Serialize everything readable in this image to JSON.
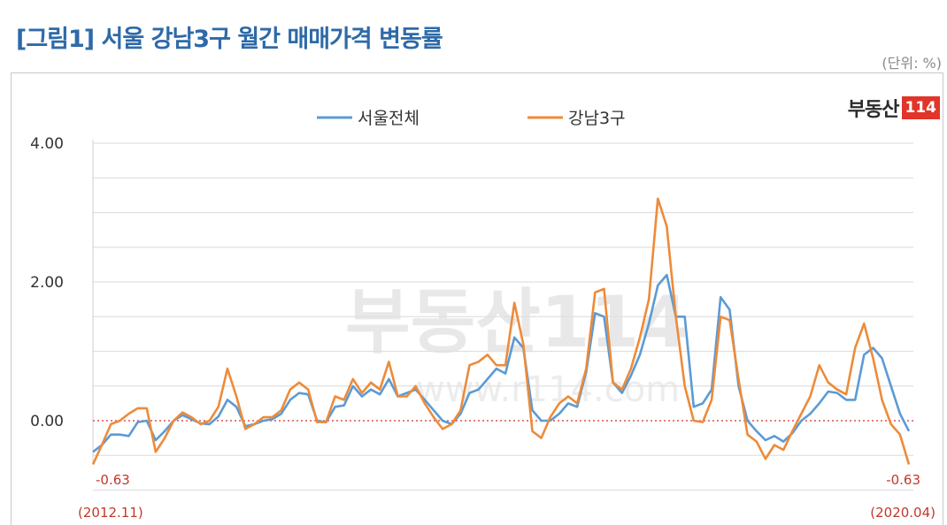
{
  "title": "[그림1] 서울 강남3구 월간 매매가격 변동률",
  "unit": "(단위: %)",
  "brand": {
    "text": "부동산",
    "number": "114"
  },
  "watermark": {
    "text": "부동산114",
    "sub": "www.r114.com"
  },
  "colors": {
    "seoul": "#5b9bd5",
    "gangnam": "#ed8b3a",
    "zero_line": "#d9534f",
    "annotation": "#c0392b"
  },
  "chart_data": {
    "type": "line",
    "title": "서울 강남3구 월간 매매가격 변동률",
    "xlabel": "",
    "ylabel": "",
    "ylim": [
      -1.2,
      4.0
    ],
    "yticks": [
      "4.00",
      "2.00",
      "0.00"
    ],
    "grid": true,
    "legend_position": "top-center",
    "x_start": "2012.11",
    "x_end": "2020.04",
    "x_start_label": "(2012.11)",
    "x_end_label": "(2020.04)",
    "annotations": [
      {
        "label": "-0.63",
        "at": "2012.11",
        "series": "강남3구"
      },
      {
        "label": "-0.63",
        "at": "2020.04",
        "series": "강남3구"
      }
    ],
    "series": [
      {
        "name": "서울전체",
        "values": [
          -0.45,
          -0.35,
          -0.2,
          -0.2,
          -0.22,
          -0.02,
          0.0,
          -0.28,
          -0.15,
          0.0,
          0.08,
          0.02,
          -0.04,
          -0.05,
          0.06,
          0.3,
          0.2,
          -0.08,
          -0.05,
          0.0,
          0.02,
          0.1,
          0.3,
          0.4,
          0.38,
          0.0,
          -0.02,
          0.2,
          0.22,
          0.5,
          0.35,
          0.45,
          0.38,
          0.6,
          0.35,
          0.4,
          0.45,
          0.3,
          0.15,
          0.0,
          -0.05,
          0.1,
          0.4,
          0.45,
          0.6,
          0.75,
          0.68,
          1.2,
          1.05,
          0.15,
          0.0,
          0.0,
          0.1,
          0.25,
          0.2,
          0.7,
          1.55,
          1.5,
          0.55,
          0.4,
          0.65,
          0.95,
          1.4,
          1.95,
          2.1,
          1.5,
          1.5,
          0.2,
          0.25,
          0.45,
          1.78,
          1.6,
          0.5,
          0.0,
          -0.15,
          -0.28,
          -0.22,
          -0.3,
          -0.18,
          0.0,
          0.1,
          0.25,
          0.42,
          0.4,
          0.3,
          0.3,
          0.95,
          1.05,
          0.9,
          0.5,
          0.1,
          -0.15
        ]
      },
      {
        "name": "강남3구",
        "values": [
          -0.63,
          -0.35,
          -0.05,
          0.0,
          0.1,
          0.18,
          0.18,
          -0.45,
          -0.25,
          0.0,
          0.12,
          0.05,
          -0.05,
          0.0,
          0.2,
          0.75,
          0.35,
          -0.12,
          -0.05,
          0.05,
          0.05,
          0.15,
          0.45,
          0.55,
          0.45,
          -0.02,
          -0.02,
          0.35,
          0.3,
          0.6,
          0.4,
          0.55,
          0.45,
          0.85,
          0.35,
          0.35,
          0.5,
          0.25,
          0.05,
          -0.12,
          -0.05,
          0.15,
          0.8,
          0.85,
          0.95,
          0.8,
          0.8,
          1.7,
          1.1,
          -0.15,
          -0.25,
          0.05,
          0.25,
          0.35,
          0.25,
          0.75,
          1.85,
          1.9,
          0.55,
          0.45,
          0.75,
          1.2,
          1.75,
          3.2,
          2.8,
          1.5,
          0.5,
          0.0,
          -0.02,
          0.3,
          1.5,
          1.45,
          0.6,
          -0.2,
          -0.3,
          -0.55,
          -0.35,
          -0.42,
          -0.15,
          0.1,
          0.35,
          0.8,
          0.55,
          0.45,
          0.38,
          1.05,
          1.4,
          0.9,
          0.3,
          -0.05,
          -0.2,
          -0.63
        ]
      }
    ]
  }
}
